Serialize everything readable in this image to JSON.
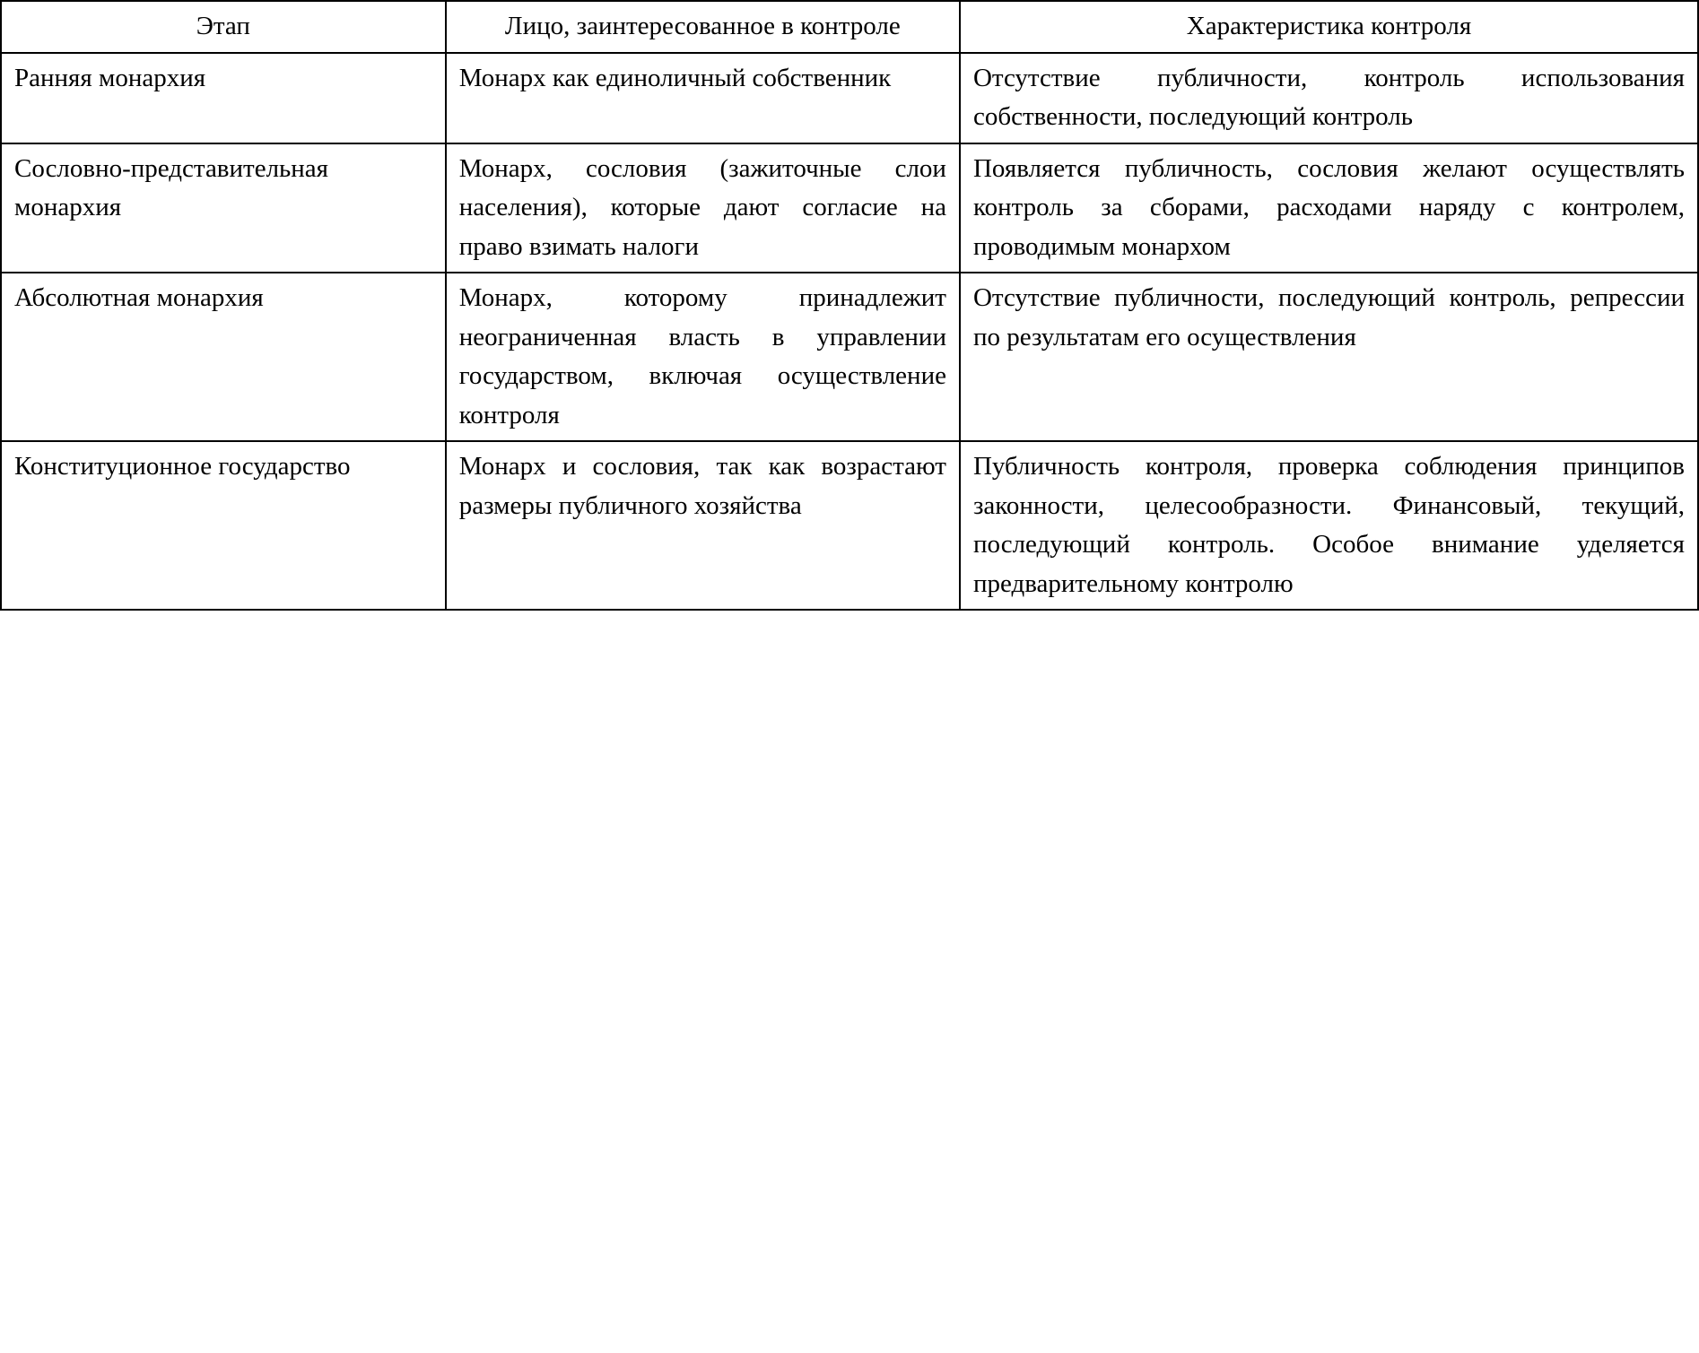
{
  "table": {
    "border_color": "#000000",
    "background_color": "#ffffff",
    "text_color": "#000000",
    "font_family": "Times New Roman",
    "font_size_pt": 29,
    "columns": [
      {
        "key": "stage",
        "header": "Этап",
        "width_pct": 26.2,
        "header_align": "center",
        "body_align": "left"
      },
      {
        "key": "person",
        "header": "Лицо, заинтересованное в контроле",
        "width_pct": 30.3,
        "header_align": "center",
        "body_align": "justify"
      },
      {
        "key": "characteristic",
        "header": "Характеристика контроля",
        "width_pct": 43.5,
        "header_align": "center",
        "body_align": "justify"
      }
    ],
    "rows": [
      {
        "stage": "Ранняя монархия",
        "person": "Монарх как единолич­ный собственник",
        "characteristic": "Отсутствие публичности, контроль использования собственности, последую­щий контроль"
      },
      {
        "stage": "Сословно-представительная монархия",
        "person": "Монарх, сословия (за­житочные слои населе­ния), которые дают со­гласие на право взимать налоги",
        "characteristic": "Появляется публичность, сословия желают осуществ­лять контроль за сборами, расходами наряду с контро­лем, проводимым монархом"
      },
      {
        "stage": "Абсолютная монархия",
        "person": "Монарх, которому при­надлежит неограничен­ная власть в управлении государством, включая осуществление контроля",
        "characteristic": "Отсутствие публичности, последующий контроль, ре­прессии по результатам его осуществления"
      },
      {
        "stage": "Конституционное государство",
        "person": "Монарх и сословия, так как возрастают размеры публичного хозяйства",
        "characteristic": "Публичность контроля, про­верка соблюдения принци­пов законности, целесооб­разности. Финансовый, те­кущий, последующий кон­троль. Особое внимание уделяется предварительному контролю"
      }
    ]
  }
}
